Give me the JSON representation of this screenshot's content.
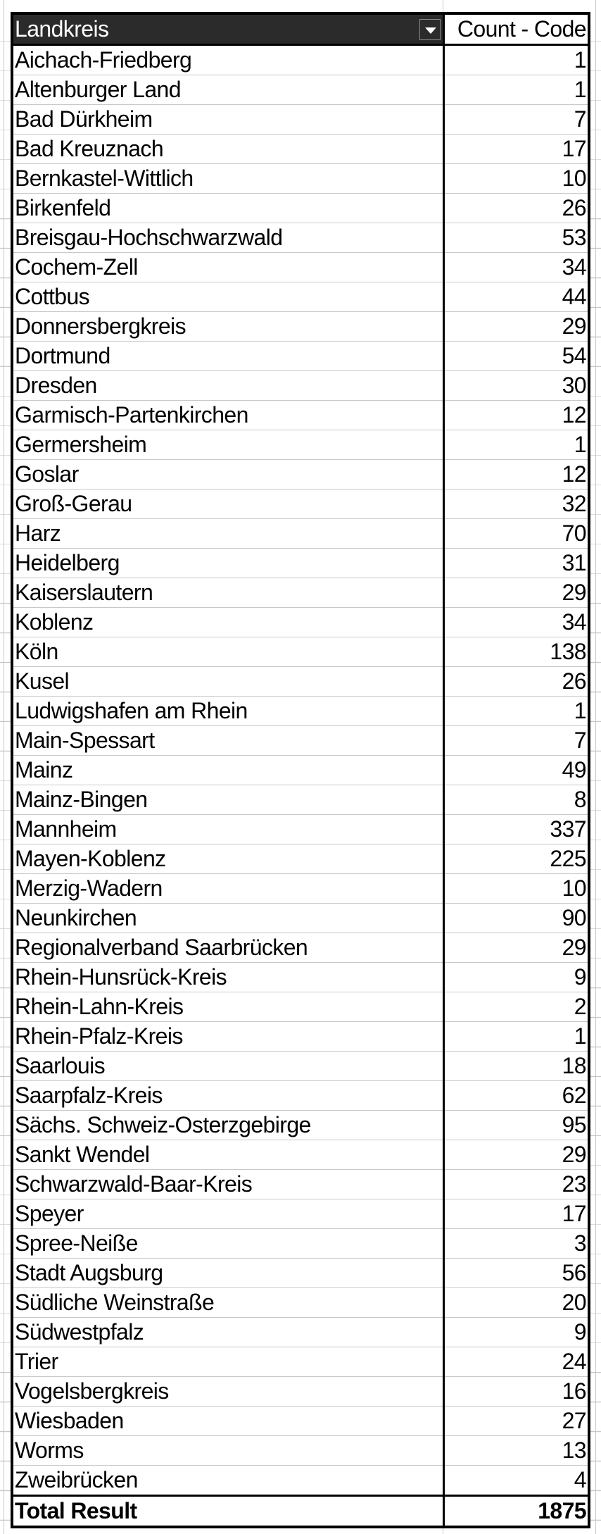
{
  "header": {
    "col1": "Landkreis",
    "col2": "Count - Code",
    "filter_icon": "dropdown-arrow-icon"
  },
  "rows": [
    {
      "name": "Aichach-Friedberg",
      "count": "1"
    },
    {
      "name": "Altenburger Land",
      "count": "1"
    },
    {
      "name": "Bad Dürkheim",
      "count": "7"
    },
    {
      "name": "Bad Kreuznach",
      "count": "17"
    },
    {
      "name": "Bernkastel-Wittlich",
      "count": "10"
    },
    {
      "name": "Birkenfeld",
      "count": "26"
    },
    {
      "name": "Breisgau-Hochschwarzwald",
      "count": "53"
    },
    {
      "name": "Cochem-Zell",
      "count": "34"
    },
    {
      "name": "Cottbus",
      "count": "44"
    },
    {
      "name": "Donnersbergkreis",
      "count": "29"
    },
    {
      "name": "Dortmund",
      "count": "54"
    },
    {
      "name": "Dresden",
      "count": "30"
    },
    {
      "name": "Garmisch-Partenkirchen",
      "count": "12"
    },
    {
      "name": "Germersheim",
      "count": "1"
    },
    {
      "name": "Goslar",
      "count": "12"
    },
    {
      "name": "Groß-Gerau",
      "count": "32"
    },
    {
      "name": "Harz",
      "count": "70"
    },
    {
      "name": "Heidelberg",
      "count": "31"
    },
    {
      "name": "Kaiserslautern",
      "count": "29"
    },
    {
      "name": "Koblenz",
      "count": "34"
    },
    {
      "name": "Köln",
      "count": "138"
    },
    {
      "name": "Kusel",
      "count": "26"
    },
    {
      "name": "Ludwigshafen am Rhein",
      "count": "1"
    },
    {
      "name": "Main-Spessart",
      "count": "7"
    },
    {
      "name": "Mainz",
      "count": "49"
    },
    {
      "name": "Mainz-Bingen",
      "count": "8"
    },
    {
      "name": "Mannheim",
      "count": "337"
    },
    {
      "name": "Mayen-Koblenz",
      "count": "225"
    },
    {
      "name": "Merzig-Wadern",
      "count": "10"
    },
    {
      "name": "Neunkirchen",
      "count": "90"
    },
    {
      "name": "Regionalverband Saarbrücken",
      "count": "29"
    },
    {
      "name": "Rhein-Hunsrück-Kreis",
      "count": "9"
    },
    {
      "name": "Rhein-Lahn-Kreis",
      "count": "2"
    },
    {
      "name": "Rhein-Pfalz-Kreis",
      "count": "1"
    },
    {
      "name": "Saarlouis",
      "count": "18"
    },
    {
      "name": "Saarpfalz-Kreis",
      "count": "62"
    },
    {
      "name": "Sächs. Schweiz-Osterzgebirge",
      "count": "95"
    },
    {
      "name": "Sankt Wendel",
      "count": "29"
    },
    {
      "name": "Schwarzwald-Baar-Kreis",
      "count": "23"
    },
    {
      "name": "Speyer",
      "count": "17"
    },
    {
      "name": "Spree-Neiße",
      "count": "3"
    },
    {
      "name": "Stadt Augsburg",
      "count": "56"
    },
    {
      "name": "Südliche Weinstraße",
      "count": "20"
    },
    {
      "name": "Südwestpfalz",
      "count": "9"
    },
    {
      "name": "Trier",
      "count": "24"
    },
    {
      "name": "Vogelsbergkreis",
      "count": "16"
    },
    {
      "name": "Wiesbaden",
      "count": "27"
    },
    {
      "name": "Worms",
      "count": "13"
    },
    {
      "name": "Zweibrücken",
      "count": "4"
    }
  ],
  "total": {
    "label": "Total Result",
    "count": "1875"
  }
}
